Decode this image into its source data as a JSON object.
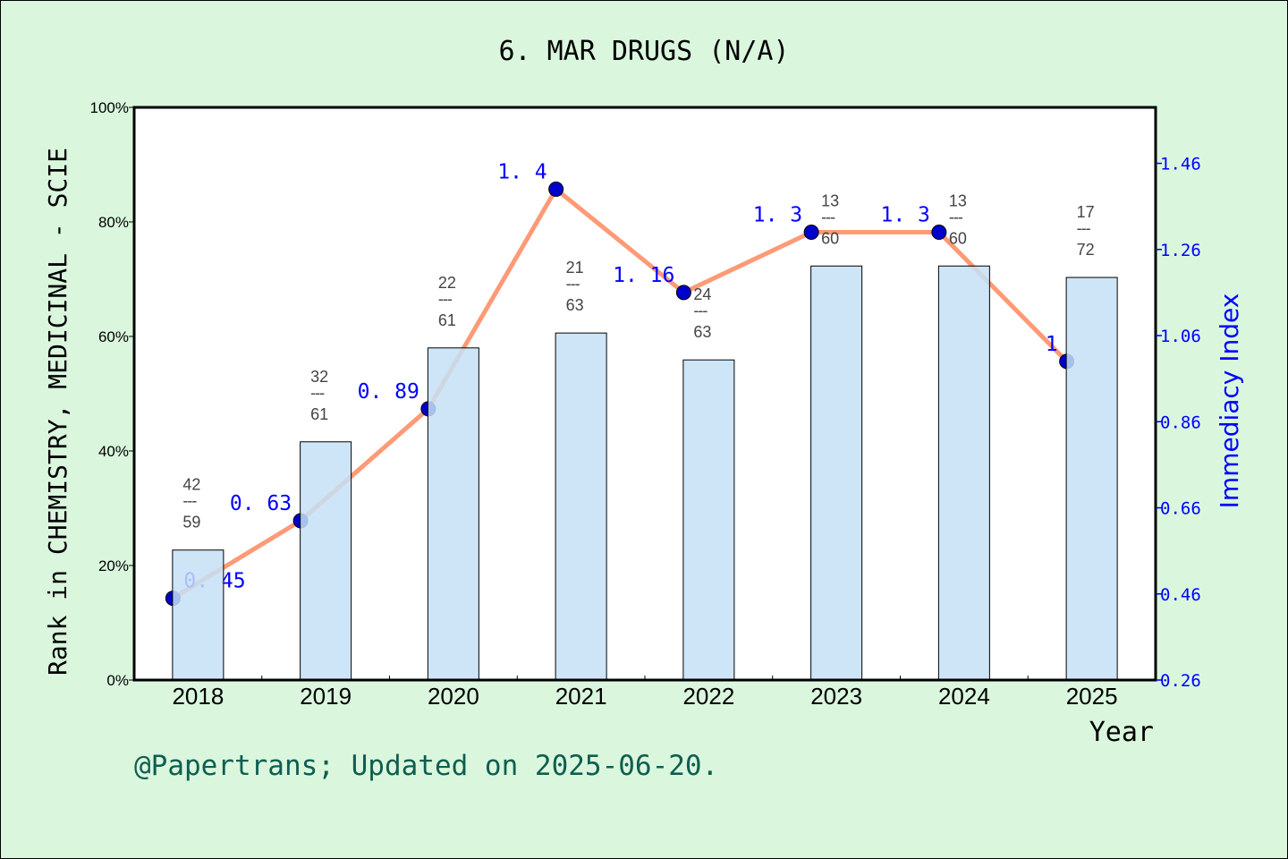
{
  "chart_data": {
    "type": "bar+line",
    "title": "6. MAR DRUGS (N/A)",
    "xlabel": "Year",
    "ylabel": "Rank in CHEMISTRY, MEDICINAL - SCIE",
    "y2label": "Immediacy Index",
    "categories": [
      "2018",
      "2019",
      "2020",
      "2021",
      "2022",
      "2023",
      "2024",
      "2025"
    ],
    "ylim": [
      0,
      100
    ],
    "yticks": [
      "0%",
      "20%",
      "40%",
      "60%",
      "80%",
      "100%"
    ],
    "y2lim": [
      0.26,
      1.59
    ],
    "y2ticks": [
      "0.26",
      "0.46",
      "0.66",
      "0.86",
      "1.06",
      "1.26",
      "1.46"
    ],
    "bar_series": {
      "values": [
        22.7,
        41.6,
        58.0,
        60.6,
        55.9,
        72.3,
        72.3,
        70.3
      ],
      "rank_labels": [
        {
          "rank": "42",
          "total": "59"
        },
        {
          "rank": "32",
          "total": "61"
        },
        {
          "rank": "22",
          "total": "61"
        },
        {
          "rank": "21",
          "total": "63"
        },
        {
          "rank": "24",
          "total": "63"
        },
        {
          "rank": "13",
          "total": "60"
        },
        {
          "rank": "13",
          "total": "60"
        },
        {
          "rank": "17",
          "total": "72"
        }
      ],
      "color": "#c5e0f7"
    },
    "line_series": {
      "values": [
        0.45,
        0.63,
        0.89,
        1.4,
        1.16,
        1.3,
        1.3,
        1
      ],
      "labels": [
        "0. 45",
        "0. 63",
        "0. 89",
        "1. 4",
        "1. 16",
        "1. 3",
        "1. 3",
        "1"
      ],
      "line_color": "#ff9a76",
      "marker_color": "#0000cc"
    },
    "grid": false
  },
  "footer": "@Papertrans; Updated on 2025-06-20.",
  "divider": "---"
}
